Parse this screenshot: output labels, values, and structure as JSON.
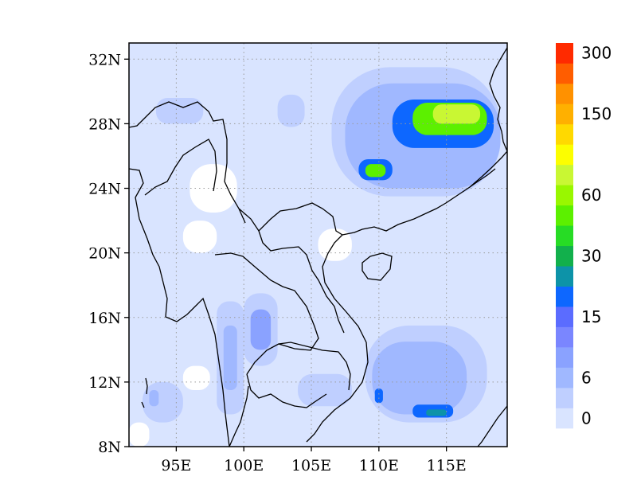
{
  "map": {
    "lon_range": [
      91.5,
      119.5
    ],
    "lat_range": [
      8,
      33
    ],
    "background_fill": "#d9e4ff",
    "lat_ticks": [
      {
        "value": 8,
        "label": "8N"
      },
      {
        "value": 12,
        "label": "12N"
      },
      {
        "value": 16,
        "label": "16N"
      },
      {
        "value": 20,
        "label": "20N"
      },
      {
        "value": 24,
        "label": "24N"
      },
      {
        "value": 28,
        "label": "28N"
      },
      {
        "value": 32,
        "label": "32N"
      }
    ],
    "lon_ticks": [
      {
        "value": 95,
        "label": "95E"
      },
      {
        "value": 100,
        "label": "100E"
      },
      {
        "value": 105,
        "label": "105E"
      },
      {
        "value": 110,
        "label": "110E"
      },
      {
        "value": 115,
        "label": "115E"
      }
    ],
    "gridlines": "dotted",
    "zero_areas": [
      {
        "name": "west-hills",
        "lon": [
          96.0,
          99.5
        ],
        "lat": [
          22.5,
          25.5
        ]
      },
      {
        "name": "myanmar-plateau",
        "lon": [
          95.5,
          98.0
        ],
        "lat": [
          20.0,
          22.0
        ]
      },
      {
        "name": "bay-of-bengal-corner",
        "lon": [
          91.5,
          93.0
        ],
        "lat": [
          8.0,
          9.5
        ]
      },
      {
        "name": "andaman-gap",
        "lon": [
          95.5,
          97.5
        ],
        "lat": [
          11.5,
          13.0
        ]
      },
      {
        "name": "gulf-of-tonkin-gap",
        "lon": [
          105.5,
          108.0
        ],
        "lat": [
          19.5,
          21.5
        ]
      }
    ],
    "precip_areas": [
      {
        "name": "tibet-band",
        "lon": [
          93.5,
          97.0
        ],
        "lat": [
          28.0,
          29.6
        ],
        "value": 3
      },
      {
        "name": "sichuan-spot",
        "lon": [
          102.5,
          104.5
        ],
        "lat": [
          27.8,
          29.8
        ],
        "value": 3
      },
      {
        "name": "south-china-broad",
        "lon": [
          106.5,
          119.0
        ],
        "lat": [
          23.5,
          31.5
        ],
        "value": 3
      },
      {
        "name": "south-china-band",
        "lon": [
          107.5,
          119.0
        ],
        "lat": [
          24.0,
          30.5
        ],
        "value": 8
      },
      {
        "name": "rain-core-east",
        "lon": [
          111.0,
          118.5
        ],
        "lat": [
          26.5,
          29.5
        ],
        "value": 20
      },
      {
        "name": "rain-core-west",
        "lon": [
          108.5,
          111.0
        ],
        "lat": [
          24.5,
          25.8
        ],
        "value": 20
      },
      {
        "name": "rain-peak-east",
        "lon": [
          112.5,
          118.0
        ],
        "lat": [
          27.3,
          29.3
        ],
        "value": 55
      },
      {
        "name": "rain-peak-west",
        "lon": [
          109.0,
          110.5
        ],
        "lat": [
          24.7,
          25.5
        ],
        "value": 55
      },
      {
        "name": "rain-max",
        "lon": [
          114.0,
          117.5
        ],
        "lat": [
          28.0,
          29.2
        ],
        "value": 90
      },
      {
        "name": "thailand-band",
        "lon": [
          100.0,
          102.5
        ],
        "lat": [
          13.0,
          17.5
        ],
        "value": 3
      },
      {
        "name": "thailand-core",
        "lon": [
          100.5,
          102.0
        ],
        "lat": [
          14.0,
          16.5
        ],
        "value": 9
      },
      {
        "name": "myanmar-coast",
        "lon": [
          98.0,
          100.0
        ],
        "lat": [
          10.0,
          17.0
        ],
        "value": 3
      },
      {
        "name": "myanmar-coast-core",
        "lon": [
          98.5,
          99.5
        ],
        "lat": [
          11.5,
          15.5
        ],
        "value": 8
      },
      {
        "name": "andaman-west",
        "lon": [
          92.5,
          95.5
        ],
        "lat": [
          9.5,
          12.0
        ],
        "value": 3
      },
      {
        "name": "andaman-spot",
        "lon": [
          93.0,
          93.7
        ],
        "lat": [
          10.5,
          11.5
        ],
        "value": 8
      },
      {
        "name": "cambodia-band",
        "lon": [
          104.0,
          108.0
        ],
        "lat": [
          10.5,
          12.5
        ],
        "value": 3
      },
      {
        "name": "scs-south",
        "lon": [
          109.0,
          118.0
        ],
        "lat": [
          9.5,
          15.5
        ],
        "value": 3
      },
      {
        "name": "scs-core",
        "lon": [
          109.5,
          116.5
        ],
        "lat": [
          10.0,
          14.5
        ],
        "value": 8
      },
      {
        "name": "scs-peak",
        "lon": [
          112.5,
          115.5
        ],
        "lat": [
          9.8,
          10.6
        ],
        "value": 20
      },
      {
        "name": "scs-max",
        "lon": [
          113.5,
          115.0
        ],
        "lat": [
          9.9,
          10.3
        ],
        "value": 28
      },
      {
        "name": "scs-spot-west",
        "lon": [
          109.7,
          110.3
        ],
        "lat": [
          10.7,
          11.6
        ],
        "value": 20
      }
    ]
  },
  "colorbar": {
    "levels": [
      0,
      3,
      6,
      9,
      12,
      15,
      20,
      25,
      30,
      40,
      50,
      60,
      80,
      100,
      125,
      150,
      200,
      250,
      300
    ],
    "colors": [
      "#d9e4ff",
      "#bfcfff",
      "#a0b8ff",
      "#8aa2ff",
      "#7a86ff",
      "#5b6cff",
      "#0d67ff",
      "#0d93a8",
      "#12b04c",
      "#27dc25",
      "#5cf000",
      "#99f700",
      "#c9f733",
      "#fcfe00",
      "#ffd900",
      "#ffb000",
      "#ff9100",
      "#ff5d00",
      "#ff2a00"
    ],
    "labels": [
      {
        "level": 0,
        "label": "0"
      },
      {
        "level": 6,
        "label": "6"
      },
      {
        "level": 15,
        "label": "15"
      },
      {
        "level": 30,
        "label": "30"
      },
      {
        "level": 60,
        "label": "60"
      },
      {
        "level": 150,
        "label": "150"
      },
      {
        "level": 300,
        "label": "300"
      }
    ]
  }
}
